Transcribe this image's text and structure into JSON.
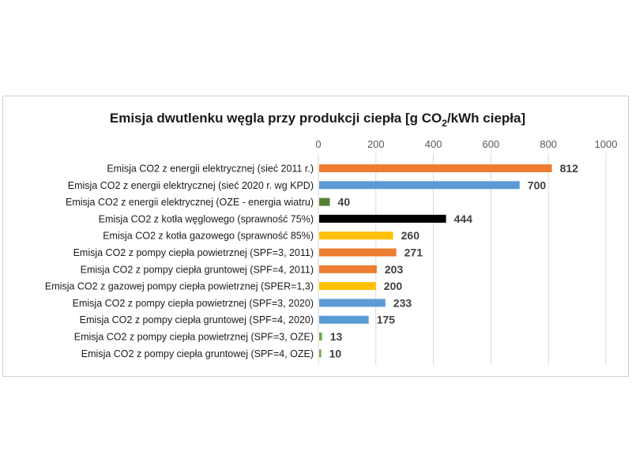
{
  "chart_data": {
    "type": "bar",
    "orientation": "horizontal",
    "title_main": "Emisja dwutlenku węgla przy produkcji ciepła [g CO",
    "title_sub": "2",
    "title_end": "/kWh ciepła]",
    "xlim": [
      0,
      1000
    ],
    "xticks": [
      "0",
      "200",
      "400",
      "600",
      "800",
      "1000"
    ],
    "grid": true,
    "axis_position": "top",
    "categories": [
      "Emisja CO2 z energii elektrycznej (sieć 2011 r.)",
      "Emisja CO2 z energii elektrycznej (sieć 2020 r. wg KPD)",
      "Emisja CO2 z energii elektrycznej (OZE - energia wiatru)",
      "Emisja CO2 z kotła węglowego (sprawność 75%)",
      "Emisja CO2 z kotła gazowego (sprawność 85%)",
      "Emisja CO2 z pompy ciepła powietrznej (SPF=3, 2011)",
      "Emisja CO2 z pompy ciepła gruntowej (SPF=4, 2011)",
      "Emisja CO2 z gazowej pompy ciepła powietrznej (SPER=1,3)",
      "Emisja CO2 z pompy ciepła powietrznej (SPF=3, 2020)",
      "Emisja CO2 z pompy ciepła gruntowej (SPF=4, 2020)",
      "Emisja CO2 z pompy ciepła powietrznej (SPF=3, OZE)",
      "Emisja CO2 z pompy ciepła gruntowej (SPF=4, OZE)"
    ],
    "values": [
      812,
      700,
      40,
      444,
      260,
      271,
      203,
      200,
      233,
      175,
      13,
      10
    ],
    "value_labels": [
      "812",
      "700",
      "40",
      "444",
      "260",
      "271",
      "203",
      "200",
      "233",
      "175",
      "13",
      "10"
    ],
    "colors": [
      "#ed7d31",
      "#5b9bd5",
      "#548235",
      "#000000",
      "#ffc000",
      "#ed7d31",
      "#ed7d31",
      "#ffc000",
      "#5b9bd5",
      "#5b9bd5",
      "#70ad47",
      "#70ad47"
    ]
  }
}
